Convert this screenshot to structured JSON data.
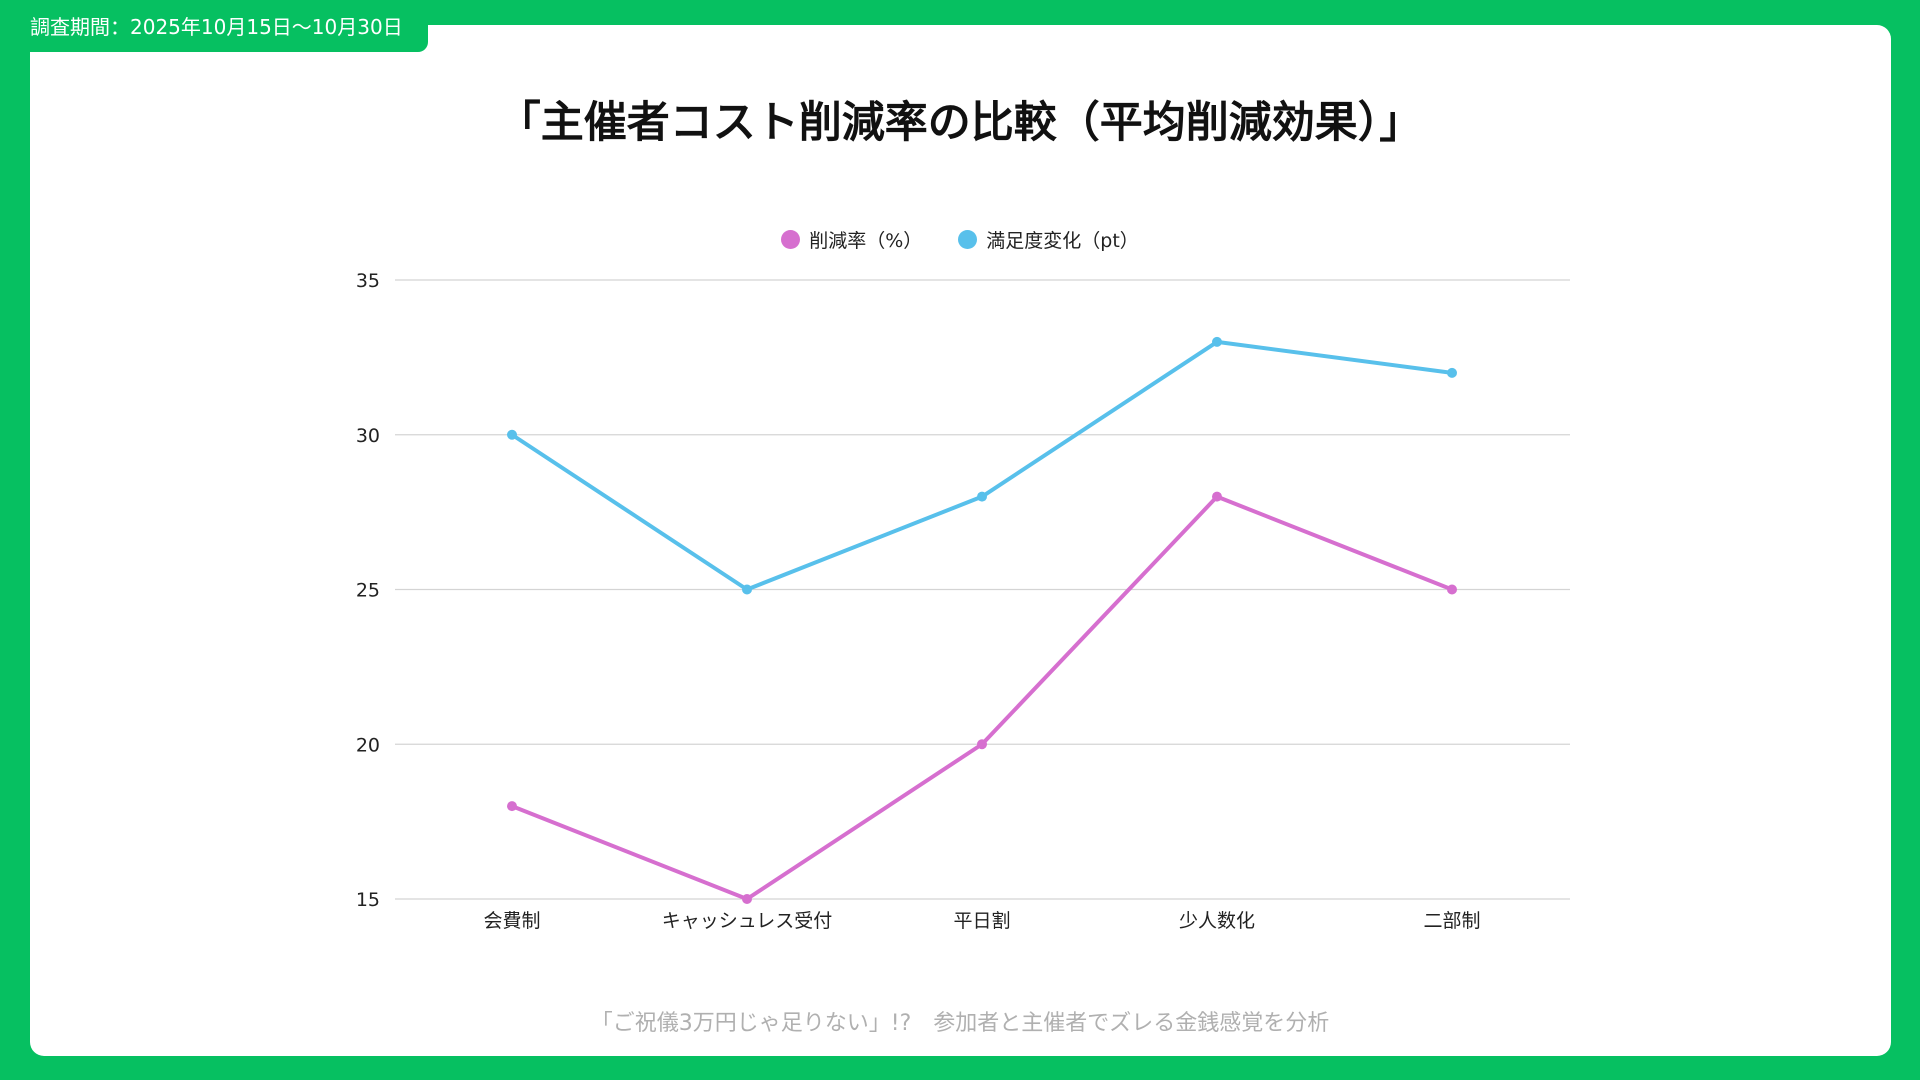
{
  "header": {
    "period": "調査期間：2025年10月15日〜10月30日"
  },
  "colors": {
    "frame": "#06C061",
    "reduction": "#D66FCF",
    "satisfaction": "#58C0EB"
  },
  "footer": {
    "text": "「ご祝儀3万円じゃ足りない」!?　参加者と主催者でズレる金銭感覚を分析"
  },
  "chart_data": {
    "type": "line",
    "title": "「主催者コスト削減率の比較（平均削減効果）」",
    "categories": [
      "会費制",
      "キャッシュレス受付",
      "平日割",
      "少人数化",
      "二部制"
    ],
    "series": [
      {
        "name": "削減率（%）",
        "values": [
          18,
          15,
          20,
          28,
          25
        ],
        "color": "#D66FCF"
      },
      {
        "name": "満足度変化（pt）",
        "values": [
          30,
          25,
          28,
          33,
          32
        ],
        "color": "#58C0EB"
      }
    ],
    "ylim": [
      15,
      35
    ],
    "yticks": [
      15,
      20,
      25,
      30,
      35
    ],
    "legend": "top-center",
    "grid": true
  }
}
